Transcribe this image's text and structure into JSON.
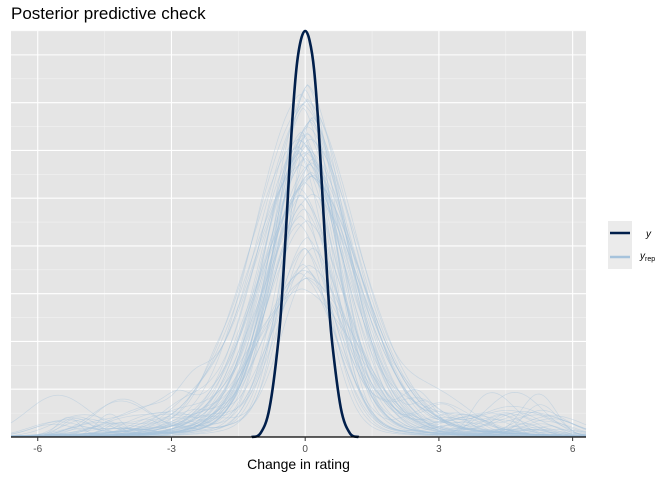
{
  "chart_data": {
    "type": "line",
    "title": "Posterior predictive check",
    "xlabel": "Change in rating",
    "ylabel": "",
    "xlim": [
      -6.6,
      6.3
    ],
    "ylim": [
      0,
      0.42
    ],
    "xticks": [
      -6,
      -3,
      0,
      3,
      6
    ],
    "xtick_labels": [
      "-6",
      "-3",
      "0",
      "3",
      "6"
    ],
    "grid": true,
    "legend_position": "right",
    "legend": [
      {
        "key": "y",
        "label": "y",
        "color": "#011f4b"
      },
      {
        "key": "yrep",
        "label": "y",
        "subscript": "rep",
        "color": "#a6c3dc"
      }
    ],
    "series": [
      {
        "name": "y",
        "color": "#011f4b",
        "x": [
          -1.2,
          -1.0,
          -0.8,
          -0.6,
          -0.5,
          -0.4,
          -0.3,
          -0.2,
          -0.1,
          0.0,
          0.1,
          0.2,
          0.3,
          0.4,
          0.5,
          0.6,
          0.8,
          1.0,
          1.2
        ],
        "y": [
          0.0,
          0.004,
          0.03,
          0.1,
          0.16,
          0.24,
          0.32,
          0.38,
          0.41,
          0.42,
          0.41,
          0.38,
          0.32,
          0.24,
          0.16,
          0.1,
          0.03,
          0.004,
          0.0
        ]
      },
      {
        "name": "y_rep",
        "color": "#a6c3dc",
        "n_draws": 60,
        "typical_peak": 0.19,
        "peak_range": [
          0.13,
          0.31
        ],
        "typical_sd": 1.0
      }
    ]
  }
}
